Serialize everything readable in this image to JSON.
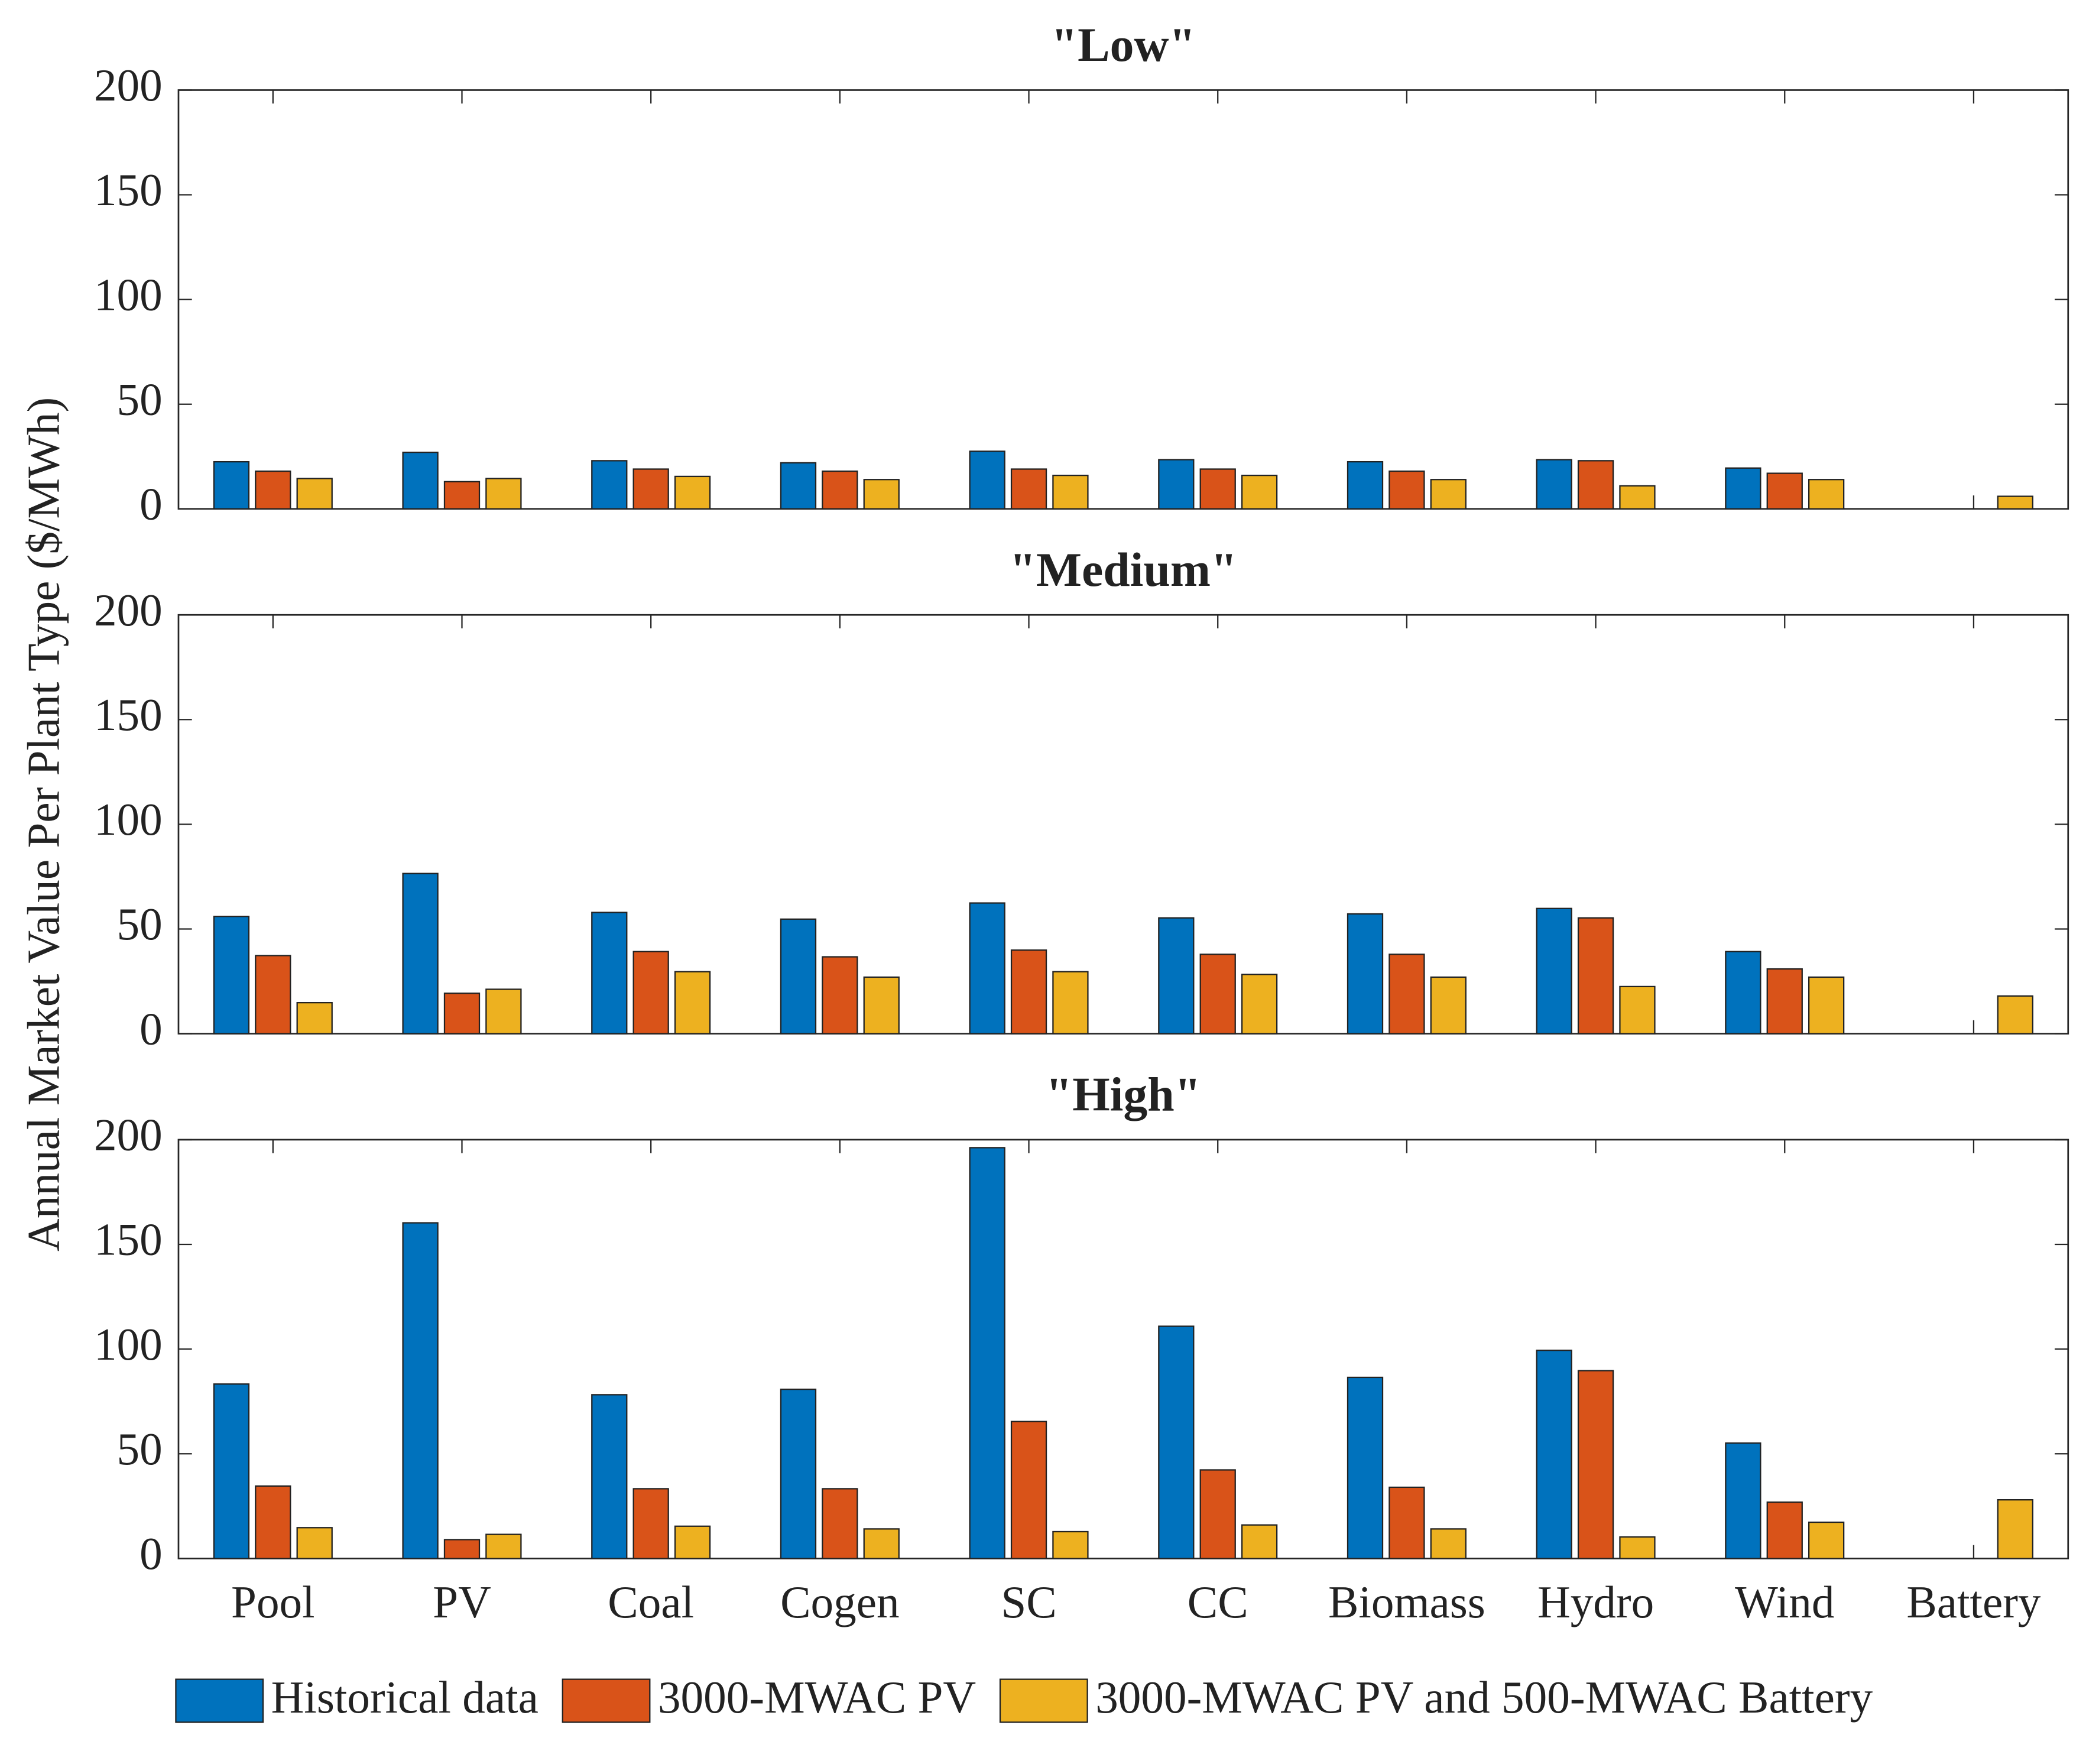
{
  "chart_data": [
    {
      "type": "bar",
      "title": "\"Low\"",
      "ylim": [
        0,
        200
      ],
      "yticks": [
        0,
        50,
        100,
        150,
        200
      ],
      "series": [
        {
          "name": "Historical data",
          "color": "#0072BD",
          "values": [
            22.5,
            27,
            23,
            22,
            27.5,
            23.5,
            22.5,
            23.5,
            19.5,
            0
          ]
        },
        {
          "name": "3000-MWAC PV",
          "color": "#D95319",
          "values": [
            18,
            13,
            19,
            18,
            19,
            19,
            18,
            23,
            17,
            0
          ]
        },
        {
          "name": "3000-MWAC PV and 500-MWAC Battery",
          "color": "#EDB120",
          "values": [
            14.5,
            14.5,
            15.5,
            14,
            16,
            16,
            14,
            11,
            14,
            6
          ]
        }
      ]
    },
    {
      "type": "bar",
      "title": "\"Medium\"",
      "ylabel": "Annual Market Value Per Plant Type ($/MWh)",
      "ylim": [
        0,
        200
      ],
      "yticks": [
        0,
        50,
        100,
        150,
        200
      ],
      "series": [
        {
          "values": [
            56,
            76.5,
            57.9,
            54.7,
            62.4,
            55.3,
            57.2,
            59.8,
            39.2,
            0
          ]
        },
        {
          "values": [
            37.3,
            19.3,
            39.2,
            36.7,
            39.9,
            37.9,
            37.9,
            55.3,
            30.9,
            0
          ]
        },
        {
          "values": [
            14.8,
            21.2,
            29.6,
            27,
            29.6,
            28.3,
            27,
            22.5,
            27,
            18
          ]
        }
      ]
    },
    {
      "type": "bar",
      "title": "\"High\"",
      "ylim": [
        0,
        200
      ],
      "yticks": [
        0,
        50,
        100,
        150,
        200
      ],
      "categories": [
        "Pool",
        "PV",
        "Coal",
        "Cogen",
        "SC",
        "CC",
        "Biomass",
        "Hydro",
        "Wind",
        "Battery"
      ],
      "series": [
        {
          "values": [
            83.3,
            160.3,
            78.2,
            80.8,
            196.2,
            110.9,
            86.5,
            99.4,
            55.1,
            0
          ]
        },
        {
          "values": [
            34.6,
            9,
            33.3,
            33.3,
            65.4,
            42.3,
            34,
            89.7,
            26.9,
            0
          ]
        },
        {
          "values": [
            14.7,
            11.5,
            15.4,
            14.1,
            12.8,
            16,
            14.1,
            10.3,
            17.3,
            28
          ]
        }
      ]
    }
  ]
}
